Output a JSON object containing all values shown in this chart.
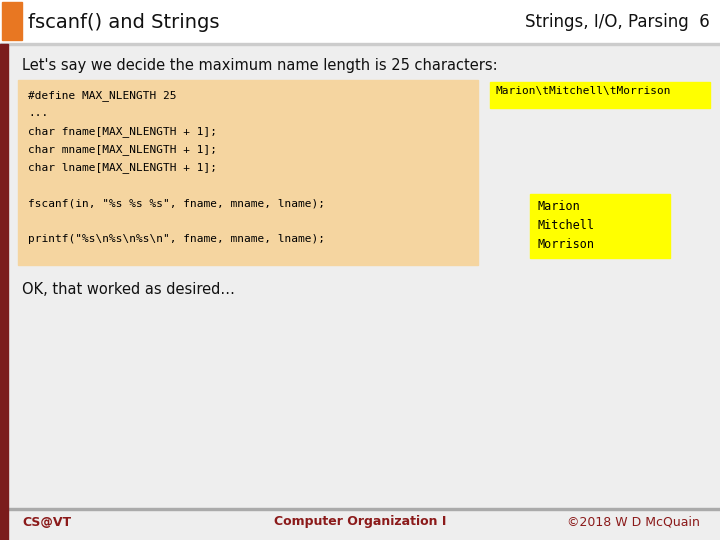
{
  "title_left": "fscanf() and Strings",
  "title_right": "Strings, I/O, Parsing  6",
  "orange_rect_color": "#e87722",
  "dark_red": "#7b1c1c",
  "slide_bg": "#eeeeee",
  "header_bg": "#ffffff",
  "subtitle": "Let's say we decide the maximum name length is 25 characters:",
  "code_block_bg": "#f5d5a0",
  "code_lines": [
    "#define MAX_NLENGTH 25",
    "...",
    "char fname[MAX_NLENGTH + 1];",
    "char mname[MAX_NLENGTH + 1];",
    "char lname[MAX_NLENGTH + 1];",
    "",
    "fscanf(in, \"%s %s %s\", fname, mname, lname);",
    "",
    "printf(\"%s\\n%s\\n%s\\n\", fname, mname, lname);"
  ],
  "yellow_bg": "#ffff00",
  "yb1_text": "Marion\\tMitchell\\tMorrison",
  "yb2_lines": [
    "Marion",
    "Mitchell",
    "Morrison"
  ],
  "ok_text": "OK, that worked as desired…",
  "footer_left": "CS@VT",
  "footer_center": "Computer Organization I",
  "footer_right": "©2018 W D McQuain",
  "footer_color": "#8b1a1a"
}
